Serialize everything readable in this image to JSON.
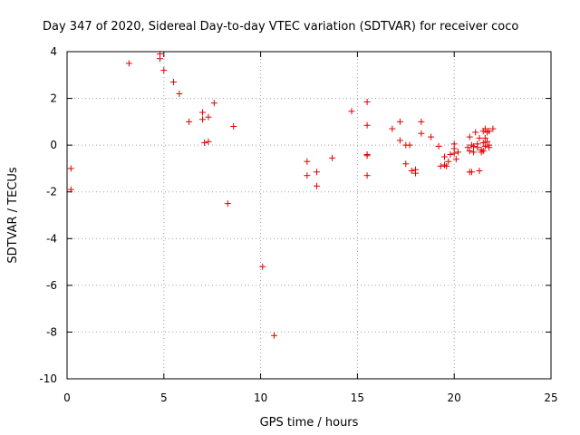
{
  "chart_data": {
    "type": "scatter",
    "title": "Day 347 of 2020, Sidereal Day-to-day VTEC variation (SDTVAR) for receiver coco",
    "xlabel": "GPS time / hours",
    "ylabel": "SDTVAR / TECUs",
    "xlim": [
      0,
      25
    ],
    "ylim": [
      -10,
      4
    ],
    "xticks": [
      0,
      5,
      10,
      15,
      20,
      25
    ],
    "yticks": [
      -10,
      -8,
      -6,
      -4,
      -2,
      0,
      2,
      4
    ],
    "grid": true,
    "marker": "+",
    "color": "#e00000",
    "series": [
      {
        "name": "SDTVAR",
        "points": [
          [
            0.2,
            -1.0
          ],
          [
            0.2,
            -1.9
          ],
          [
            3.2,
            3.5
          ],
          [
            4.8,
            3.9
          ],
          [
            4.8,
            3.7
          ],
          [
            5.0,
            3.2
          ],
          [
            5.5,
            2.7
          ],
          [
            5.8,
            2.2
          ],
          [
            6.3,
            1.0
          ],
          [
            7.0,
            1.4
          ],
          [
            7.0,
            1.1
          ],
          [
            7.3,
            1.2
          ],
          [
            7.6,
            1.8
          ],
          [
            7.1,
            0.1
          ],
          [
            7.3,
            0.15
          ],
          [
            8.6,
            0.8
          ],
          [
            8.3,
            -2.5
          ],
          [
            10.1,
            -5.2
          ],
          [
            10.7,
            -8.15
          ],
          [
            12.4,
            -0.7
          ],
          [
            12.4,
            -1.3
          ],
          [
            12.9,
            -1.15
          ],
          [
            12.9,
            -1.75
          ],
          [
            13.7,
            -0.55
          ],
          [
            14.7,
            1.45
          ],
          [
            15.5,
            1.85
          ],
          [
            15.5,
            0.85
          ],
          [
            15.5,
            -0.4
          ],
          [
            15.5,
            -0.45
          ],
          [
            15.5,
            -1.3
          ],
          [
            16.8,
            0.7
          ],
          [
            17.2,
            1.0
          ],
          [
            17.2,
            0.2
          ],
          [
            17.5,
            0.0
          ],
          [
            17.5,
            -0.8
          ],
          [
            17.7,
            0.0
          ],
          [
            17.8,
            -1.1
          ],
          [
            18.0,
            -1.05
          ],
          [
            18.0,
            -1.2
          ],
          [
            18.3,
            1.0
          ],
          [
            18.3,
            0.5
          ],
          [
            18.8,
            0.35
          ],
          [
            19.2,
            -0.05
          ],
          [
            19.3,
            -0.9
          ],
          [
            19.5,
            -0.5
          ],
          [
            19.5,
            -0.85
          ],
          [
            19.6,
            -0.9
          ],
          [
            19.7,
            -0.7
          ],
          [
            19.8,
            -0.4
          ],
          [
            20.0,
            0.05
          ],
          [
            20.0,
            -0.15
          ],
          [
            20.0,
            -0.35
          ],
          [
            20.1,
            -0.6
          ],
          [
            20.2,
            -0.3
          ],
          [
            20.7,
            -0.1
          ],
          [
            20.8,
            0.35
          ],
          [
            20.8,
            -0.25
          ],
          [
            20.8,
            -1.15
          ],
          [
            20.9,
            -1.15
          ],
          [
            20.9,
            0.0
          ],
          [
            21.0,
            -0.05
          ],
          [
            21.0,
            -0.3
          ],
          [
            21.1,
            0.55
          ],
          [
            21.2,
            0.05
          ],
          [
            21.2,
            -0.1
          ],
          [
            21.3,
            -1.1
          ],
          [
            21.3,
            0.3
          ],
          [
            21.4,
            -0.2
          ],
          [
            21.4,
            -0.3
          ],
          [
            21.5,
            0.6
          ],
          [
            21.5,
            0.1
          ],
          [
            21.5,
            -0.25
          ],
          [
            21.6,
            0.7
          ],
          [
            21.6,
            0.3
          ],
          [
            21.6,
            -0.05
          ],
          [
            21.7,
            0.55
          ],
          [
            21.7,
            0.15
          ],
          [
            21.8,
            0.0
          ],
          [
            21.8,
            -0.1
          ],
          [
            21.8,
            0.6
          ],
          [
            22.0,
            0.7
          ]
        ]
      }
    ]
  }
}
